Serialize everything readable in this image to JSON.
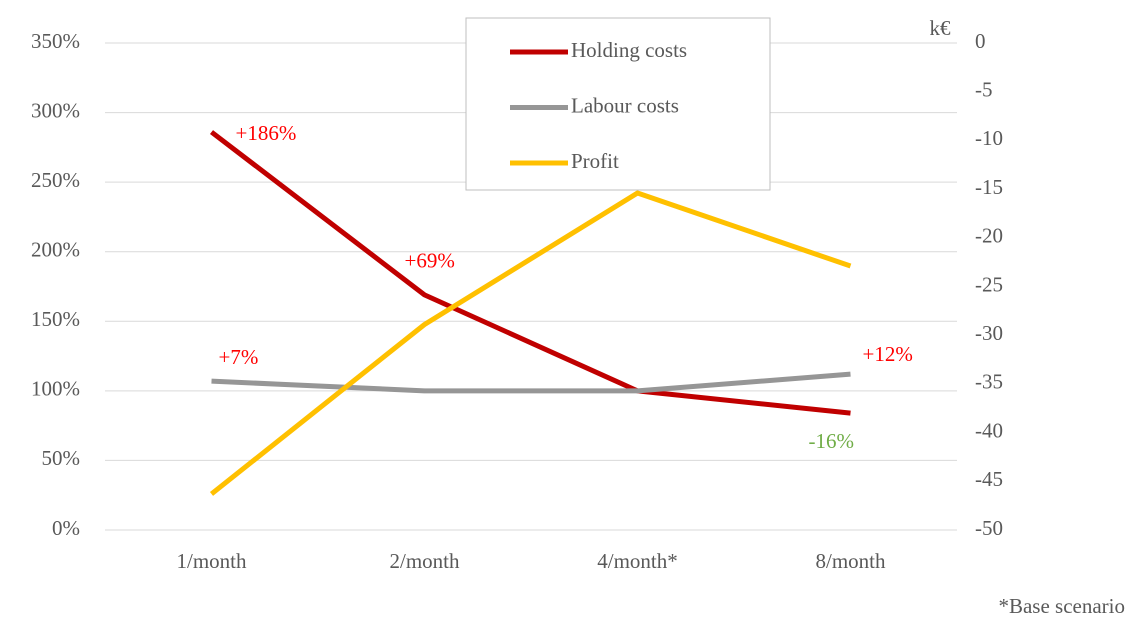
{
  "chart_data": {
    "type": "line",
    "categories": [
      "1/month",
      "2/month",
      "4/month*",
      "8/month"
    ],
    "ylim": [
      0,
      350
    ],
    "yticks": [
      {
        "value": 0,
        "label": "0%"
      },
      {
        "value": 50,
        "label": "50%"
      },
      {
        "value": 100,
        "label": "100%"
      },
      {
        "value": 150,
        "label": "150%"
      },
      {
        "value": 200,
        "label": "200%"
      },
      {
        "value": 250,
        "label": "250%"
      },
      {
        "value": 300,
        "label": "300%"
      },
      {
        "value": 350,
        "label": "350%"
      }
    ],
    "y2lim": [
      -50,
      0
    ],
    "y2ticks": [
      -50,
      -45,
      -40,
      -35,
      -30,
      -25,
      -20,
      -15,
      -10,
      -5,
      0
    ],
    "y2_label": "k€",
    "grid": true,
    "series": [
      {
        "name": "Holding costs",
        "color": "#c00000",
        "values": [
          286,
          169,
          100,
          84
        ],
        "value_labels": [
          "+186%",
          "+69%",
          null,
          "-16%"
        ],
        "value_label_colors": [
          "#ff0000",
          "#ff0000",
          null,
          "#70ad47"
        ]
      },
      {
        "name": "Labour costs",
        "color": "#969696",
        "values": [
          107,
          100,
          100,
          112
        ],
        "value_labels": [
          "+7%",
          null,
          null,
          "+12%"
        ],
        "value_label_colors": [
          "#ff0000",
          null,
          null,
          "#ff0000"
        ]
      },
      {
        "name": "Profit",
        "color": "#ffc000",
        "axis": "y2",
        "values": [
          -46.3,
          -28.9,
          -15.4,
          -22.9
        ]
      }
    ],
    "footnote": "*Base scenario"
  }
}
